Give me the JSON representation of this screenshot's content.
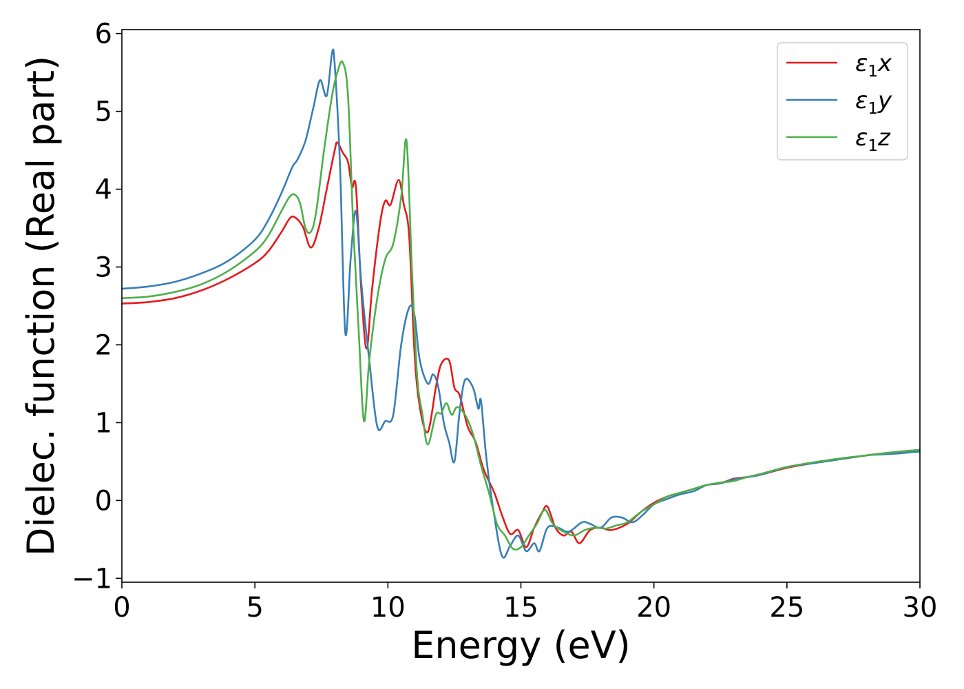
{
  "chart_data": {
    "type": "line",
    "xlabel": "Energy (eV)",
    "ylabel": "Dielec. function (Real part)",
    "xlim": [
      0,
      30
    ],
    "ylim": [
      -1.05,
      6.05
    ],
    "xticks": [
      0,
      5,
      10,
      15,
      20,
      25,
      30
    ],
    "yticks": [
      -1,
      0,
      1,
      2,
      3,
      4,
      5,
      6
    ],
    "xtick_labels": [
      "0",
      "5",
      "10",
      "15",
      "20",
      "25",
      "30"
    ],
    "ytick_labels": [
      "−1",
      "0",
      "1",
      "2",
      "3",
      "4",
      "5",
      "6"
    ],
    "grid": false,
    "legend": "top-right",
    "series": [
      {
        "name": "ε₁x",
        "legend_base": "ε",
        "legend_sub": "1",
        "legend_var": "x",
        "color": "#e41a1c",
        "points": [
          [
            0,
            2.53
          ],
          [
            1,
            2.55
          ],
          [
            2,
            2.6
          ],
          [
            3,
            2.7
          ],
          [
            4,
            2.85
          ],
          [
            5,
            3.05
          ],
          [
            5.5,
            3.2
          ],
          [
            6,
            3.45
          ],
          [
            6.3,
            3.62
          ],
          [
            6.5,
            3.64
          ],
          [
            6.8,
            3.52
          ],
          [
            7.1,
            3.25
          ],
          [
            7.4,
            3.5
          ],
          [
            7.7,
            4.0
          ],
          [
            8.0,
            4.5
          ],
          [
            8.1,
            4.6
          ],
          [
            8.3,
            4.47
          ],
          [
            8.5,
            4.35
          ],
          [
            8.65,
            4.03
          ],
          [
            8.8,
            4.02
          ],
          [
            9.0,
            2.7
          ],
          [
            9.2,
            1.95
          ],
          [
            9.4,
            2.7
          ],
          [
            9.7,
            3.55
          ],
          [
            9.9,
            3.85
          ],
          [
            10.1,
            3.8
          ],
          [
            10.4,
            4.12
          ],
          [
            10.6,
            3.8
          ],
          [
            10.8,
            3.4
          ],
          [
            11.0,
            1.9
          ],
          [
            11.2,
            1.2
          ],
          [
            11.5,
            0.88
          ],
          [
            11.8,
            1.45
          ],
          [
            12.0,
            1.75
          ],
          [
            12.3,
            1.8
          ],
          [
            12.5,
            1.45
          ],
          [
            12.7,
            1.35
          ],
          [
            13.0,
            0.95
          ],
          [
            13.3,
            0.75
          ],
          [
            13.6,
            0.4
          ],
          [
            14.0,
            0.1
          ],
          [
            14.3,
            -0.2
          ],
          [
            14.6,
            -0.43
          ],
          [
            14.9,
            -0.38
          ],
          [
            15.2,
            -0.6
          ],
          [
            15.5,
            -0.35
          ],
          [
            15.8,
            -0.15
          ],
          [
            16.0,
            -0.08
          ],
          [
            16.3,
            -0.35
          ],
          [
            16.6,
            -0.45
          ],
          [
            16.9,
            -0.4
          ],
          [
            17.2,
            -0.55
          ],
          [
            17.6,
            -0.38
          ],
          [
            18.0,
            -0.35
          ],
          [
            18.4,
            -0.38
          ],
          [
            19.0,
            -0.3
          ],
          [
            19.5,
            -0.15
          ],
          [
            20.0,
            -0.03
          ],
          [
            20.5,
            0.05
          ],
          [
            21.0,
            0.1
          ],
          [
            21.5,
            0.15
          ],
          [
            22.0,
            0.2
          ],
          [
            22.5,
            0.22
          ],
          [
            23.0,
            0.28
          ],
          [
            23.5,
            0.3
          ],
          [
            24.0,
            0.33
          ],
          [
            25.0,
            0.42
          ],
          [
            26.0,
            0.48
          ],
          [
            27.0,
            0.53
          ],
          [
            28.0,
            0.58
          ],
          [
            29.0,
            0.62
          ],
          [
            30.0,
            0.65
          ]
        ]
      },
      {
        "name": "ε₁y",
        "legend_base": "ε",
        "legend_sub": "1",
        "legend_var": "y",
        "color": "#377eb8",
        "points": [
          [
            0,
            2.72
          ],
          [
            1,
            2.75
          ],
          [
            2,
            2.81
          ],
          [
            3,
            2.92
          ],
          [
            4,
            3.08
          ],
          [
            5,
            3.35
          ],
          [
            5.5,
            3.6
          ],
          [
            6,
            3.95
          ],
          [
            6.4,
            4.28
          ],
          [
            6.6,
            4.38
          ],
          [
            6.9,
            4.62
          ],
          [
            7.2,
            5.05
          ],
          [
            7.45,
            5.4
          ],
          [
            7.7,
            5.2
          ],
          [
            7.9,
            5.75
          ],
          [
            8.0,
            5.6
          ],
          [
            8.2,
            4.3
          ],
          [
            8.4,
            2.15
          ],
          [
            8.6,
            3.1
          ],
          [
            8.8,
            3.72
          ],
          [
            9.0,
            2.8
          ],
          [
            9.3,
            1.8
          ],
          [
            9.6,
            0.95
          ],
          [
            9.9,
            1.02
          ],
          [
            10.2,
            1.1
          ],
          [
            10.5,
            2.0
          ],
          [
            10.8,
            2.48
          ],
          [
            11.0,
            2.38
          ],
          [
            11.2,
            1.8
          ],
          [
            11.5,
            1.5
          ],
          [
            11.7,
            1.62
          ],
          [
            11.9,
            1.45
          ],
          [
            12.1,
            1.0
          ],
          [
            12.3,
            0.75
          ],
          [
            12.5,
            0.5
          ],
          [
            12.7,
            1.15
          ],
          [
            12.9,
            1.55
          ],
          [
            13.2,
            1.45
          ],
          [
            13.4,
            1.18
          ],
          [
            13.5,
            1.28
          ],
          [
            13.7,
            0.55
          ],
          [
            14.0,
            -0.2
          ],
          [
            14.3,
            -0.72
          ],
          [
            14.6,
            -0.58
          ],
          [
            14.9,
            -0.45
          ],
          [
            15.2,
            -0.65
          ],
          [
            15.5,
            -0.55
          ],
          [
            15.7,
            -0.65
          ],
          [
            16.0,
            -0.35
          ],
          [
            16.4,
            -0.35
          ],
          [
            16.8,
            -0.4
          ],
          [
            17.3,
            -0.28
          ],
          [
            17.6,
            -0.3
          ],
          [
            18.0,
            -0.35
          ],
          [
            18.4,
            -0.22
          ],
          [
            18.8,
            -0.22
          ],
          [
            19.2,
            -0.28
          ],
          [
            19.6,
            -0.18
          ],
          [
            20.0,
            -0.05
          ],
          [
            20.5,
            0.02
          ],
          [
            21.0,
            0.08
          ],
          [
            21.5,
            0.12
          ],
          [
            22.0,
            0.2
          ],
          [
            22.5,
            0.22
          ],
          [
            23.0,
            0.27
          ],
          [
            23.5,
            0.3
          ],
          [
            24.0,
            0.33
          ],
          [
            25.0,
            0.43
          ],
          [
            26.0,
            0.48
          ],
          [
            27.0,
            0.53
          ],
          [
            28.0,
            0.58
          ],
          [
            29.0,
            0.6
          ],
          [
            30.0,
            0.63
          ]
        ]
      },
      {
        "name": "ε₁z",
        "legend_base": "ε",
        "legend_sub": "1",
        "legend_var": "z",
        "color": "#4daf4a",
        "points": [
          [
            0,
            2.6
          ],
          [
            1,
            2.62
          ],
          [
            2,
            2.68
          ],
          [
            3,
            2.78
          ],
          [
            4,
            2.95
          ],
          [
            5,
            3.2
          ],
          [
            5.5,
            3.4
          ],
          [
            6,
            3.72
          ],
          [
            6.3,
            3.9
          ],
          [
            6.5,
            3.93
          ],
          [
            6.7,
            3.82
          ],
          [
            6.9,
            3.5
          ],
          [
            7.1,
            3.45
          ],
          [
            7.3,
            3.7
          ],
          [
            7.6,
            4.5
          ],
          [
            7.9,
            5.2
          ],
          [
            8.1,
            5.5
          ],
          [
            8.3,
            5.63
          ],
          [
            8.5,
            5.2
          ],
          [
            8.7,
            3.5
          ],
          [
            8.9,
            2.2
          ],
          [
            9.1,
            1.02
          ],
          [
            9.3,
            1.8
          ],
          [
            9.6,
            2.6
          ],
          [
            9.9,
            3.1
          ],
          [
            10.2,
            3.3
          ],
          [
            10.5,
            3.9
          ],
          [
            10.7,
            4.62
          ],
          [
            10.9,
            3.0
          ],
          [
            11.1,
            1.6
          ],
          [
            11.3,
            1.1
          ],
          [
            11.5,
            0.72
          ],
          [
            11.8,
            1.1
          ],
          [
            12.0,
            1.12
          ],
          [
            12.2,
            1.25
          ],
          [
            12.4,
            1.1
          ],
          [
            12.6,
            1.2
          ],
          [
            12.9,
            1.1
          ],
          [
            13.2,
            0.85
          ],
          [
            13.5,
            0.45
          ],
          [
            13.8,
            0.1
          ],
          [
            14.1,
            -0.3
          ],
          [
            14.4,
            -0.45
          ],
          [
            14.7,
            -0.62
          ],
          [
            15.0,
            -0.6
          ],
          [
            15.3,
            -0.45
          ],
          [
            15.6,
            -0.3
          ],
          [
            15.9,
            -0.12
          ],
          [
            16.2,
            -0.3
          ],
          [
            16.6,
            -0.4
          ],
          [
            17.0,
            -0.45
          ],
          [
            17.4,
            -0.38
          ],
          [
            17.8,
            -0.35
          ],
          [
            18.2,
            -0.36
          ],
          [
            18.6,
            -0.32
          ],
          [
            19.0,
            -0.28
          ],
          [
            19.5,
            -0.15
          ],
          [
            20.0,
            -0.05
          ],
          [
            20.5,
            0.05
          ],
          [
            21.0,
            0.1
          ],
          [
            21.5,
            0.15
          ],
          [
            22.0,
            0.2
          ],
          [
            22.5,
            0.23
          ],
          [
            23.0,
            0.25
          ],
          [
            23.5,
            0.3
          ],
          [
            24.0,
            0.34
          ],
          [
            25.0,
            0.43
          ],
          [
            26.0,
            0.49
          ],
          [
            27.0,
            0.54
          ],
          [
            28.0,
            0.58
          ],
          [
            29.0,
            0.62
          ],
          [
            30.0,
            0.65
          ]
        ]
      }
    ]
  }
}
